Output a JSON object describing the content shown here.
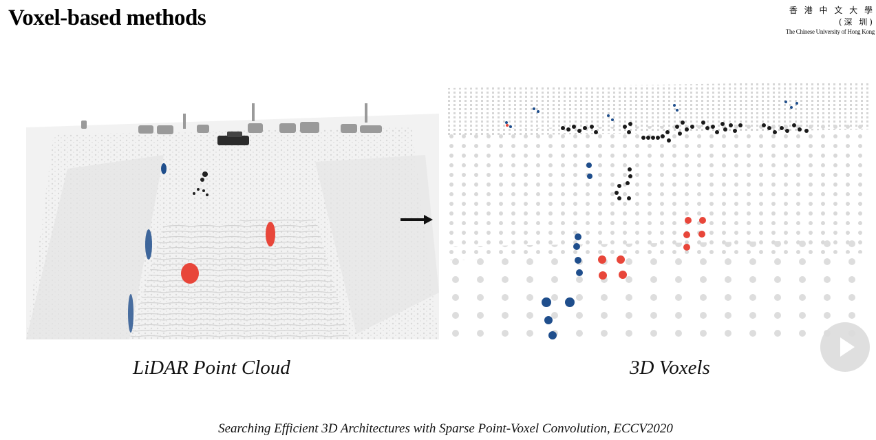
{
  "slide": {
    "title": "Voxel-based methods",
    "logo": {
      "chinese": "香 港 中 文 大 學 (深 圳)",
      "english": "The Chinese University of Hong Kong"
    },
    "left_caption": "LiDAR Point Cloud",
    "right_caption": "3D Voxels",
    "citation": "Searching Efficient 3D Architectures with Sparse Point-Voxel Convolution, ECCV2020"
  },
  "colors": {
    "pedestrian_blue": "#1f4e8c",
    "cyclist_red": "#e8463a",
    "car_black": "#1a1a1a",
    "background_points": "#c9c9c9"
  },
  "icons": {
    "arrow": "arrow-right-icon",
    "player": "play-icon"
  }
}
